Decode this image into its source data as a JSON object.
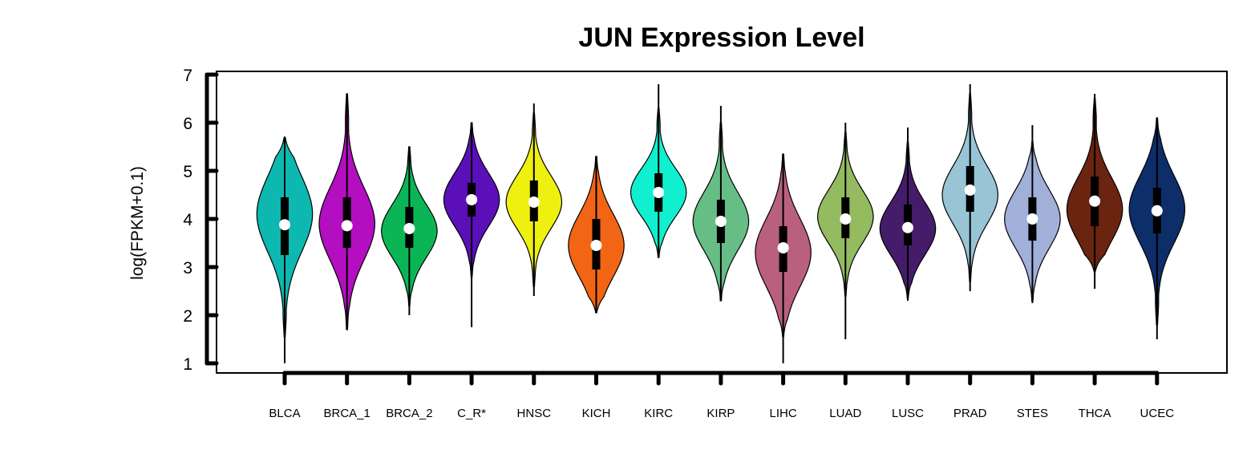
{
  "chart_data": {
    "type": "violin",
    "title": "JUN Expression Level",
    "xlabel": "",
    "ylabel": "log(FPKM+0.1)",
    "ylim": [
      1,
      7
    ],
    "yticks": [
      "1",
      "2",
      "3",
      "4",
      "5",
      "6",
      "7"
    ],
    "grid": false,
    "legend": "none",
    "categories": [
      "BLCA",
      "BRCA_1",
      "BRCA_2",
      "C_R*",
      "HNSC",
      "KICH",
      "KIRC",
      "KIRP",
      "LIHC",
      "LUAD",
      "LUSC",
      "PRAD",
      "STES",
      "THCA",
      "UCEC"
    ],
    "series": [
      {
        "category": "BLCA",
        "color": "#0cb8b0",
        "min": 1.0,
        "q1": 3.25,
        "median": 3.88,
        "q3": 4.45,
        "max": 5.7,
        "vmin": 1.55,
        "vmax": 5.7,
        "peak": 4.1,
        "spread": 0.78
      },
      {
        "category": "BRCA_1",
        "color": "#b30ec0",
        "min": 1.7,
        "q1": 3.4,
        "median": 3.86,
        "q3": 4.45,
        "max": 6.6,
        "vmin": 1.7,
        "vmax": 6.6,
        "peak": 3.9,
        "spread": 0.75
      },
      {
        "category": "BRCA_2",
        "color": "#0bb556",
        "min": 2.0,
        "q1": 3.4,
        "median": 3.8,
        "q3": 4.25,
        "max": 5.5,
        "vmin": 2.2,
        "vmax": 5.5,
        "peak": 3.75,
        "spread": 0.55
      },
      {
        "category": "C_R*",
        "color": "#5b0fb8",
        "min": 1.75,
        "q1": 4.05,
        "median": 4.4,
        "q3": 4.75,
        "max": 6.0,
        "vmin": 2.8,
        "vmax": 6.0,
        "peak": 4.4,
        "spread": 0.55
      },
      {
        "category": "HNSC",
        "color": "#eef00f",
        "min": 2.4,
        "q1": 3.95,
        "median": 4.35,
        "q3": 4.8,
        "max": 6.4,
        "vmin": 2.6,
        "vmax": 6.2,
        "peak": 4.35,
        "spread": 0.55
      },
      {
        "category": "KICH",
        "color": "#f26515",
        "min": 2.05,
        "q1": 2.95,
        "median": 3.45,
        "q3": 4.0,
        "max": 5.3,
        "vmin": 2.05,
        "vmax": 5.3,
        "peak": 3.45,
        "spread": 0.65
      },
      {
        "category": "KIRC",
        "color": "#10f0d0",
        "min": 3.2,
        "q1": 4.15,
        "median": 4.55,
        "q3": 4.95,
        "max": 6.8,
        "vmin": 3.2,
        "vmax": 6.3,
        "peak": 4.55,
        "spread": 0.5
      },
      {
        "category": "KIRP",
        "color": "#66be86",
        "min": 2.3,
        "q1": 3.5,
        "median": 3.95,
        "q3": 4.4,
        "max": 6.35,
        "vmin": 2.3,
        "vmax": 6.0,
        "peak": 3.95,
        "spread": 0.6
      },
      {
        "category": "LIHC",
        "color": "#b9607e",
        "min": 1.0,
        "q1": 2.9,
        "median": 3.4,
        "q3": 3.85,
        "max": 5.35,
        "vmin": 1.55,
        "vmax": 5.35,
        "peak": 3.3,
        "spread": 0.7
      },
      {
        "category": "LUAD",
        "color": "#94bb60",
        "min": 1.5,
        "q1": 3.6,
        "median": 4.0,
        "q3": 4.45,
        "max": 6.0,
        "vmin": 2.4,
        "vmax": 5.8,
        "peak": 4.05,
        "spread": 0.55
      },
      {
        "category": "LUSC",
        "color": "#451c6a",
        "min": 2.3,
        "q1": 3.45,
        "median": 3.82,
        "q3": 4.3,
        "max": 5.9,
        "vmin": 2.35,
        "vmax": 5.6,
        "peak": 3.8,
        "spread": 0.55
      },
      {
        "category": "PRAD",
        "color": "#98c4d6",
        "min": 2.5,
        "q1": 4.15,
        "median": 4.6,
        "q3": 5.1,
        "max": 6.8,
        "vmin": 2.7,
        "vmax": 6.6,
        "peak": 4.5,
        "spread": 0.6
      },
      {
        "category": "STES",
        "color": "#a0b0d8",
        "min": 2.25,
        "q1": 3.55,
        "median": 4.0,
        "q3": 4.45,
        "max": 5.95,
        "vmin": 2.3,
        "vmax": 5.6,
        "peak": 4.0,
        "spread": 0.6
      },
      {
        "category": "THCA",
        "color": "#6a2410",
        "min": 2.55,
        "q1": 3.85,
        "median": 4.37,
        "q3": 4.88,
        "max": 6.6,
        "vmin": 2.9,
        "vmax": 6.5,
        "peak": 4.2,
        "spread": 0.65
      },
      {
        "category": "UCEC",
        "color": "#0e2e6a",
        "min": 1.5,
        "q1": 3.7,
        "median": 4.17,
        "q3": 4.65,
        "max": 6.1,
        "vmin": 1.8,
        "vmax": 6.1,
        "peak": 4.2,
        "spread": 0.7
      }
    ]
  }
}
